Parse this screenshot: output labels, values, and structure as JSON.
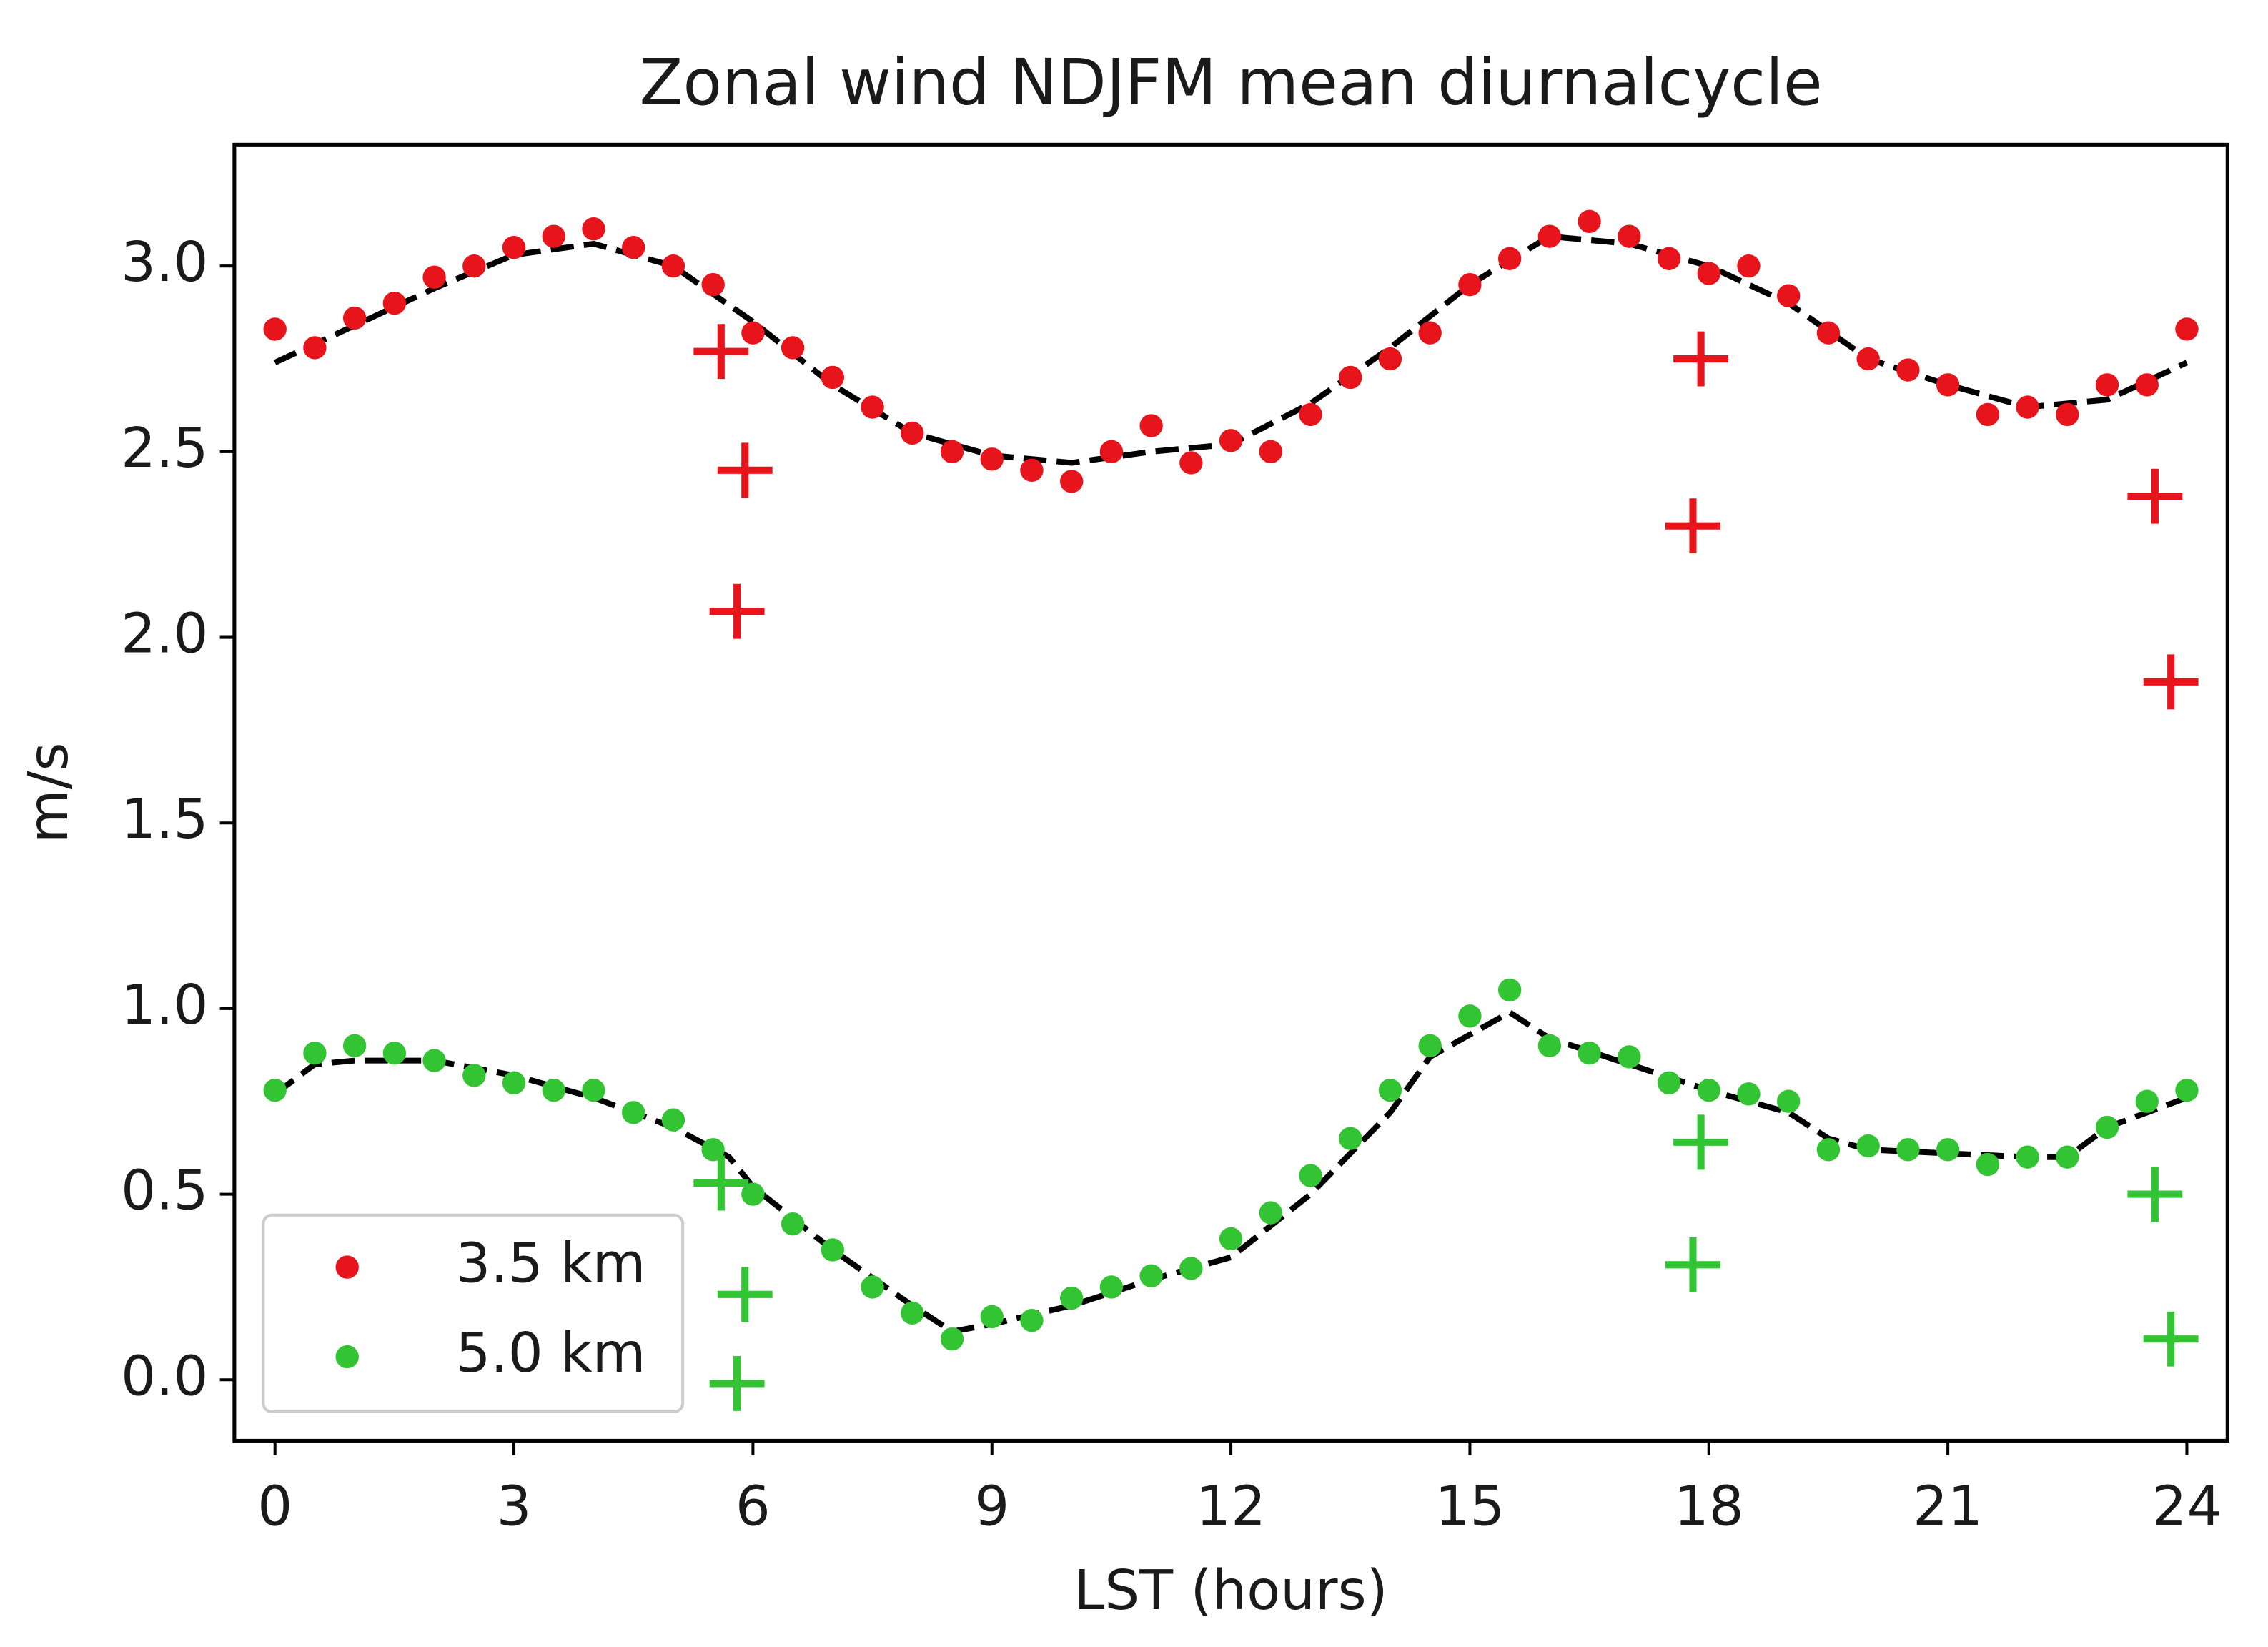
{
  "chart_data": {
    "type": "scatter",
    "title": "Zonal wind NDJFM mean diurnalcycle",
    "x_label": "LST (hours)",
    "y_label": "m/s",
    "xlim": [
      -0.51,
      24.51
    ],
    "ylim": [
      -0.164,
      3.327
    ],
    "xticks": [
      0,
      3,
      6,
      9,
      12,
      15,
      18,
      21,
      24
    ],
    "yticks": [
      {
        "value": 0,
        "label": "0.0"
      },
      0.5,
      {
        "value": 1,
        "label": "1.0"
      },
      1.5,
      {
        "value": 2,
        "label": "2.0"
      },
      2.5,
      {
        "value": 3,
        "label": "3.0"
      }
    ],
    "legend": "lower left",
    "series": [
      {
        "name": "3.5 km",
        "color": "#e8141c",
        "x": [
          0,
          0.5,
          1,
          1.5,
          2,
          2.5,
          3,
          3.5,
          4,
          4.5,
          5,
          5.5,
          6,
          6.5,
          7,
          7.5,
          8,
          8.5,
          9,
          9.5,
          10,
          10.5,
          11,
          11.5,
          12,
          12.5,
          13,
          13.5,
          14,
          14.5,
          15,
          15.5,
          16,
          16.5,
          17,
          17.5,
          18,
          18.5,
          19,
          19.5,
          20,
          20.5,
          21,
          21.5,
          22,
          22.5,
          23,
          23.5,
          24
        ],
        "values": [
          2.83,
          2.78,
          2.86,
          2.9,
          2.97,
          3.0,
          3.05,
          3.08,
          3.1,
          3.05,
          3.0,
          2.95,
          2.82,
          2.78,
          2.7,
          2.62,
          2.55,
          2.5,
          2.48,
          2.45,
          2.42,
          2.5,
          2.57,
          2.47,
          2.53,
          2.5,
          2.6,
          2.7,
          2.75,
          2.82,
          2.95,
          3.02,
          3.08,
          3.12,
          3.08,
          3.02,
          2.98,
          3.0,
          2.92,
          2.82,
          2.75,
          2.72,
          2.68,
          2.6,
          2.62,
          2.6,
          2.68,
          2.68,
          2.83
        ],
        "plus_x": [
          5.6,
          5.9,
          5.8,
          17.9,
          17.8,
          23.6,
          23.8
        ],
        "plus_values": [
          2.77,
          2.45,
          2.07,
          2.75,
          2.3,
          2.38,
          1.88
        ]
      },
      {
        "name": "5.0 km",
        "color": "#33c433",
        "x": [
          0,
          0.5,
          1,
          1.5,
          2,
          2.5,
          3,
          3.5,
          4,
          4.5,
          5,
          5.5,
          6,
          6.5,
          7,
          7.5,
          8,
          8.5,
          9,
          9.5,
          10,
          10.5,
          11,
          11.5,
          12,
          12.5,
          13,
          13.5,
          14,
          14.5,
          15,
          15.5,
          16,
          16.5,
          17,
          17.5,
          18,
          18.5,
          19,
          19.5,
          20,
          20.5,
          21,
          21.5,
          22,
          22.5,
          23,
          23.5,
          24
        ],
        "values": [
          0.78,
          0.88,
          0.9,
          0.88,
          0.86,
          0.82,
          0.8,
          0.78,
          0.78,
          0.72,
          0.7,
          0.62,
          0.5,
          0.42,
          0.35,
          0.25,
          0.18,
          0.11,
          0.17,
          0.16,
          0.22,
          0.25,
          0.28,
          0.3,
          0.38,
          0.45,
          0.55,
          0.65,
          0.78,
          0.9,
          0.98,
          1.05,
          0.9,
          0.88,
          0.87,
          0.8,
          0.78,
          0.77,
          0.75,
          0.62,
          0.63,
          0.62,
          0.62,
          0.58,
          0.6,
          0.6,
          0.68,
          0.75,
          0.78
        ],
        "plus_x": [
          5.6,
          5.9,
          5.8,
          17.9,
          17.8,
          23.6,
          23.8
        ],
        "plus_values": [
          0.53,
          0.23,
          -0.01,
          0.64,
          0.31,
          0.5,
          0.11
        ]
      }
    ],
    "fit_lines": [
      {
        "color": "#000000",
        "style": "dashed",
        "x": [
          0,
          1,
          2,
          3,
          4,
          5,
          6,
          7,
          8,
          9,
          10,
          11,
          12,
          13,
          14,
          15,
          16,
          17,
          18,
          19,
          20,
          21,
          22,
          23,
          24
        ],
        "values": [
          2.74,
          2.84,
          2.94,
          3.03,
          3.06,
          3.0,
          2.85,
          2.68,
          2.55,
          2.49,
          2.47,
          2.5,
          2.52,
          2.63,
          2.78,
          2.95,
          3.08,
          3.06,
          3.0,
          2.9,
          2.75,
          2.68,
          2.62,
          2.64,
          2.74
        ]
      },
      {
        "color": "#000000",
        "style": "dashed",
        "x": [
          0,
          0.5,
          1,
          2,
          3,
          4,
          5,
          5.7,
          6,
          7,
          8,
          8.5,
          9,
          10,
          11,
          12,
          13,
          14,
          14.5,
          15.5,
          16,
          17,
          18,
          19,
          19.5,
          20,
          21,
          22,
          22.5,
          23,
          24
        ],
        "values": [
          0.77,
          0.85,
          0.86,
          0.86,
          0.82,
          0.76,
          0.68,
          0.6,
          0.52,
          0.35,
          0.2,
          0.13,
          0.15,
          0.2,
          0.27,
          0.33,
          0.5,
          0.72,
          0.87,
          0.99,
          0.92,
          0.85,
          0.78,
          0.72,
          0.65,
          0.62,
          0.61,
          0.6,
          0.6,
          0.68,
          0.76
        ]
      }
    ]
  }
}
